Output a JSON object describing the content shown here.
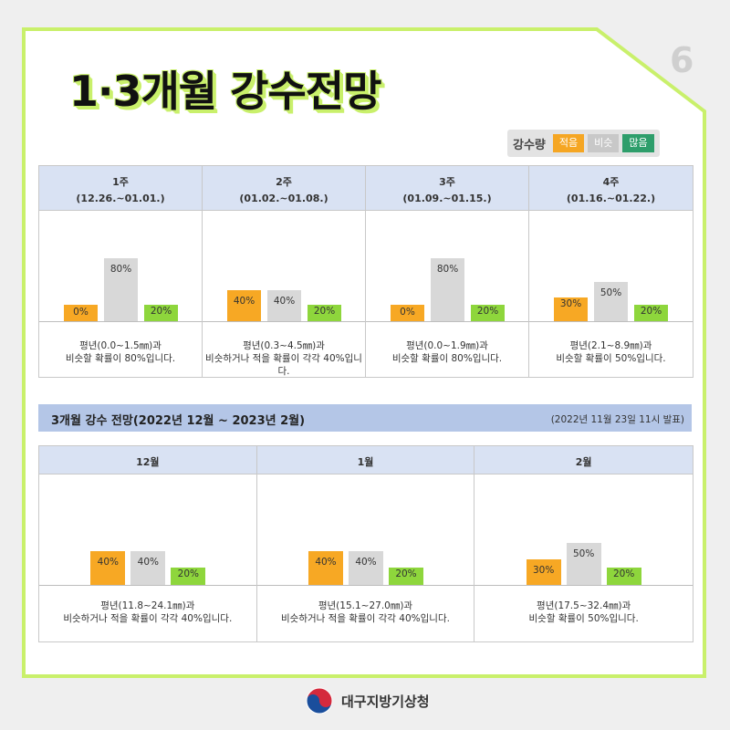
{
  "page_number": "6",
  "title": "1·3개월 강수전망",
  "legend": {
    "title": "강수량",
    "items": [
      {
        "label": "적음",
        "color": "#f5a623"
      },
      {
        "label": "비슷",
        "color": "#c8c8c8"
      },
      {
        "label": "많음",
        "color": "#2e9e6b"
      }
    ]
  },
  "colors": {
    "low": "#f7a824",
    "normal": "#d8d8d8",
    "high": "#8ed63c",
    "header": "#d9e2f3",
    "section": "#b4c6e7",
    "frame": "#c9f06b"
  },
  "section": {
    "title": "3개월 강수 전망(2022년 12월 ~ 2023년 2월)",
    "issued": "(2022년 11월 23일 11시 발표)"
  },
  "footer": {
    "org": "대구지방기상청"
  },
  "chart_data": [
    {
      "type": "bar",
      "panel": "weekly",
      "categories": [
        "적음",
        "비슷",
        "많음"
      ],
      "groups": [
        {
          "title": "1주",
          "period": "(12.26.~01.01.)",
          "values": [
            0,
            80,
            20
          ],
          "desc1": "평년(0.0~1.5㎜)과",
          "desc2": "비슷할 확률이 80%입니다."
        },
        {
          "title": "2주",
          "period": "(01.02.~01.08.)",
          "values": [
            40,
            40,
            20
          ],
          "desc1": "평년(0.3~4.5㎜)과",
          "desc2": "비슷하거나 적을 확률이 각각 40%입니다."
        },
        {
          "title": "3주",
          "period": "(01.09.~01.15.)",
          "values": [
            0,
            80,
            20
          ],
          "desc1": "평년(0.0~1.9㎜)과",
          "desc2": "비슷할 확률이 80%입니다."
        },
        {
          "title": "4주",
          "period": "(01.16.~01.22.)",
          "values": [
            30,
            50,
            20
          ],
          "desc1": "평년(2.1~8.9㎜)과",
          "desc2": "비슷할 확률이 50%입니다."
        }
      ]
    },
    {
      "type": "bar",
      "panel": "monthly",
      "categories": [
        "적음",
        "비슷",
        "많음"
      ],
      "groups": [
        {
          "title": "12월",
          "values": [
            40,
            40,
            20
          ],
          "desc1": "평년(11.8~24.1㎜)과",
          "desc2": "비슷하거나 적을 확률이 각각 40%입니다."
        },
        {
          "title": "1월",
          "values": [
            40,
            40,
            20
          ],
          "desc1": "평년(15.1~27.0㎜)과",
          "desc2": "비슷하거나 적을 확률이 각각 40%입니다."
        },
        {
          "title": "2월",
          "values": [
            30,
            50,
            20
          ],
          "desc1": "평년(17.5~32.4㎜)과",
          "desc2": "비슷할 확률이 50%입니다."
        }
      ]
    }
  ]
}
